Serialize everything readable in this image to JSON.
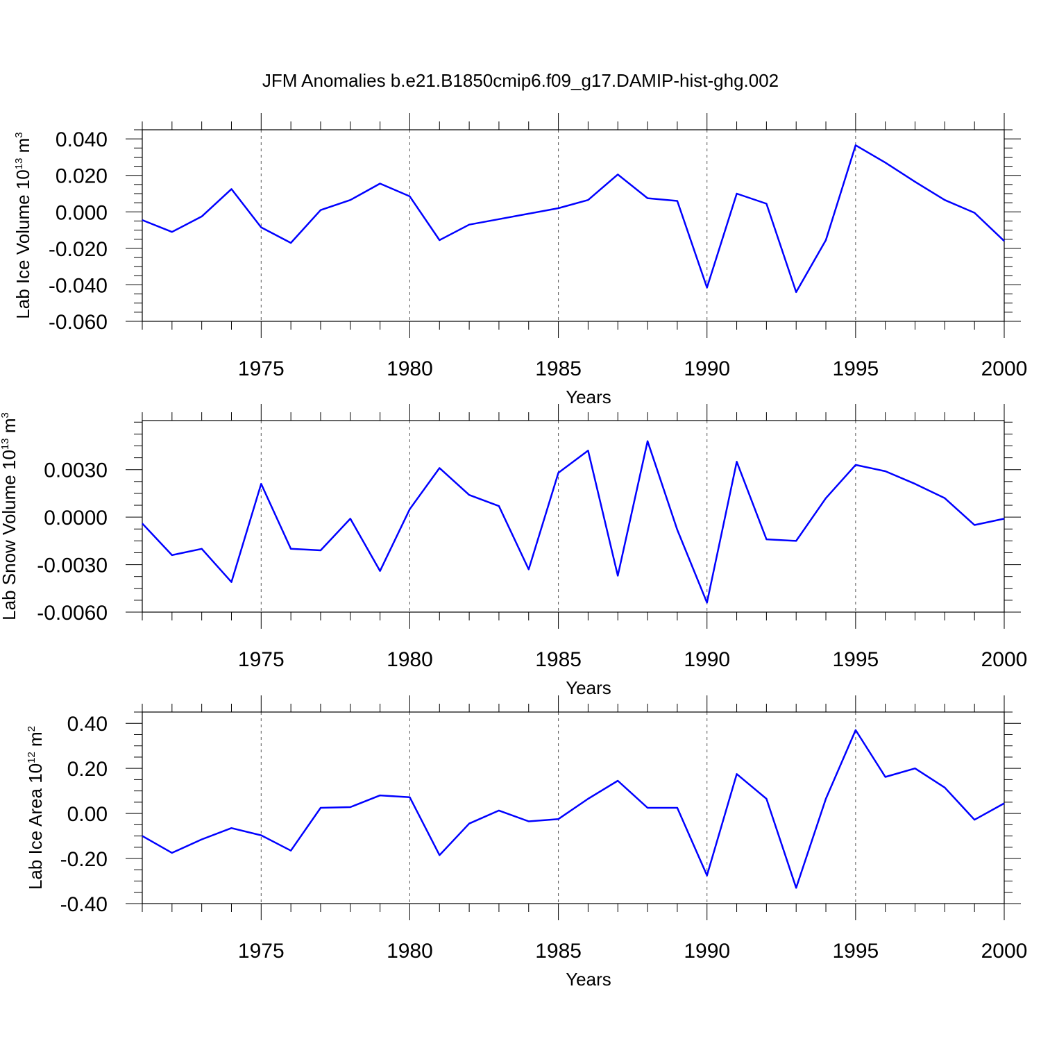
{
  "figure_title": "JFM Anomalies b.e21.B1850cmip6.f09_g17.DAMIP-hist-ghg.002",
  "line_color": "#0000ff",
  "chart_data": [
    {
      "type": "line",
      "title": "",
      "xlabel": "Years",
      "ylabel_text": "Lab Ice Volume 10",
      "ylabel_exp": "13",
      "ylabel_unit": " m",
      "ylabel_unit_exp": "3",
      "xlim": [
        1971,
        2000
      ],
      "ylim": [
        -0.06,
        0.045
      ],
      "xticks": [
        1975,
        1980,
        1985,
        1990,
        1995,
        2000
      ],
      "xtick_labels": [
        "1975",
        "1980",
        "1985",
        "1990",
        "1995",
        "2000"
      ],
      "yticks": [
        -0.06,
        -0.04,
        -0.02,
        0.0,
        0.02,
        0.04
      ],
      "ytick_labels": [
        "-0.060",
        "-0.040",
        "-0.020",
        "0.000",
        "0.020",
        "0.040"
      ],
      "grid": "vertical dashed at labeled years",
      "x": [
        1971,
        1972,
        1973,
        1974,
        1975,
        1976,
        1977,
        1978,
        1979,
        1980,
        1981,
        1982,
        1983,
        1984,
        1985,
        1986,
        1987,
        1988,
        1989,
        1990,
        1991,
        1992,
        1993,
        1994,
        1995,
        1996,
        1997,
        1998,
        1999,
        2000
      ],
      "series": [
        {
          "values": [
            -0.0045,
            -0.011,
            -0.0025,
            0.0125,
            -0.0085,
            -0.017,
            0.001,
            0.0065,
            0.0155,
            0.0085,
            -0.0155,
            -0.007,
            -0.004,
            -0.001,
            0.002,
            0.0065,
            0.0205,
            0.0075,
            0.006,
            -0.0415,
            0.01,
            0.0045,
            -0.044,
            -0.0155,
            0.0365,
            0.027,
            0.0165,
            0.0065,
            -0.0005,
            -0.016
          ]
        }
      ]
    },
    {
      "type": "line",
      "title": "",
      "xlabel": "Years",
      "ylabel_text": "Lab Snow Volume 10",
      "ylabel_exp": "13",
      "ylabel_unit": " m",
      "ylabel_unit_exp": "3",
      "xlim": [
        1971,
        2000
      ],
      "ylim": [
        -0.006,
        0.0061
      ],
      "xticks": [
        1975,
        1980,
        1985,
        1990,
        1995,
        2000
      ],
      "xtick_labels": [
        "1975",
        "1980",
        "1985",
        "1990",
        "1995",
        "2000"
      ],
      "yticks": [
        -0.006,
        -0.003,
        0.0,
        0.003
      ],
      "ytick_labels": [
        "-0.0060",
        "-0.0030",
        "0.0000",
        "0.0030"
      ],
      "grid": "vertical dashed at labeled years",
      "x": [
        1971,
        1972,
        1973,
        1974,
        1975,
        1976,
        1977,
        1978,
        1979,
        1980,
        1981,
        1982,
        1983,
        1984,
        1985,
        1986,
        1987,
        1988,
        1989,
        1990,
        1991,
        1992,
        1993,
        1994,
        1995,
        1996,
        1997,
        1998,
        1999,
        2000
      ],
      "series": [
        {
          "values": [
            -0.0004,
            -0.0024,
            -0.002,
            -0.0041,
            0.0021,
            -0.002,
            -0.0021,
            -0.0001,
            -0.0034,
            0.0005,
            0.0031,
            0.0014,
            0.0007,
            -0.0033,
            0.0028,
            0.0042,
            -0.0037,
            0.0048,
            -0.0008,
            -0.0054,
            0.0035,
            -0.0014,
            -0.0015,
            0.0012,
            0.0033,
            0.0029,
            0.0021,
            0.0012,
            -0.0005,
            -0.0001
          ]
        }
      ]
    },
    {
      "type": "line",
      "title": "",
      "xlabel": "Years",
      "ylabel_text": "Lab Ice Area 10",
      "ylabel_exp": "12",
      "ylabel_unit": " m",
      "ylabel_unit_exp": "2",
      "xlim": [
        1971,
        2000
      ],
      "ylim": [
        -0.4,
        0.45
      ],
      "xticks": [
        1975,
        1980,
        1985,
        1990,
        1995,
        2000
      ],
      "xtick_labels": [
        "1975",
        "1980",
        "1985",
        "1990",
        "1995",
        "2000"
      ],
      "yticks": [
        -0.4,
        -0.2,
        0.0,
        0.2,
        0.4
      ],
      "ytick_labels": [
        "-0.40",
        "-0.20",
        "0.00",
        "0.20",
        "0.40"
      ],
      "grid": "vertical dashed at labeled years",
      "x": [
        1971,
        1972,
        1973,
        1974,
        1975,
        1976,
        1977,
        1978,
        1979,
        1980,
        1981,
        1982,
        1983,
        1984,
        1985,
        1986,
        1987,
        1988,
        1989,
        1990,
        1991,
        1992,
        1993,
        1994,
        1995,
        1996,
        1997,
        1998,
        1999,
        2000
      ],
      "series": [
        {
          "values": [
            -0.1,
            -0.175,
            -0.115,
            -0.065,
            -0.097,
            -0.165,
            0.025,
            0.028,
            0.08,
            0.072,
            -0.185,
            -0.045,
            0.013,
            -0.035,
            -0.025,
            0.065,
            0.145,
            0.025,
            0.025,
            -0.275,
            0.175,
            0.065,
            -0.33,
            0.065,
            0.37,
            0.162,
            0.2,
            0.115,
            -0.028,
            0.045
          ]
        }
      ]
    }
  ]
}
